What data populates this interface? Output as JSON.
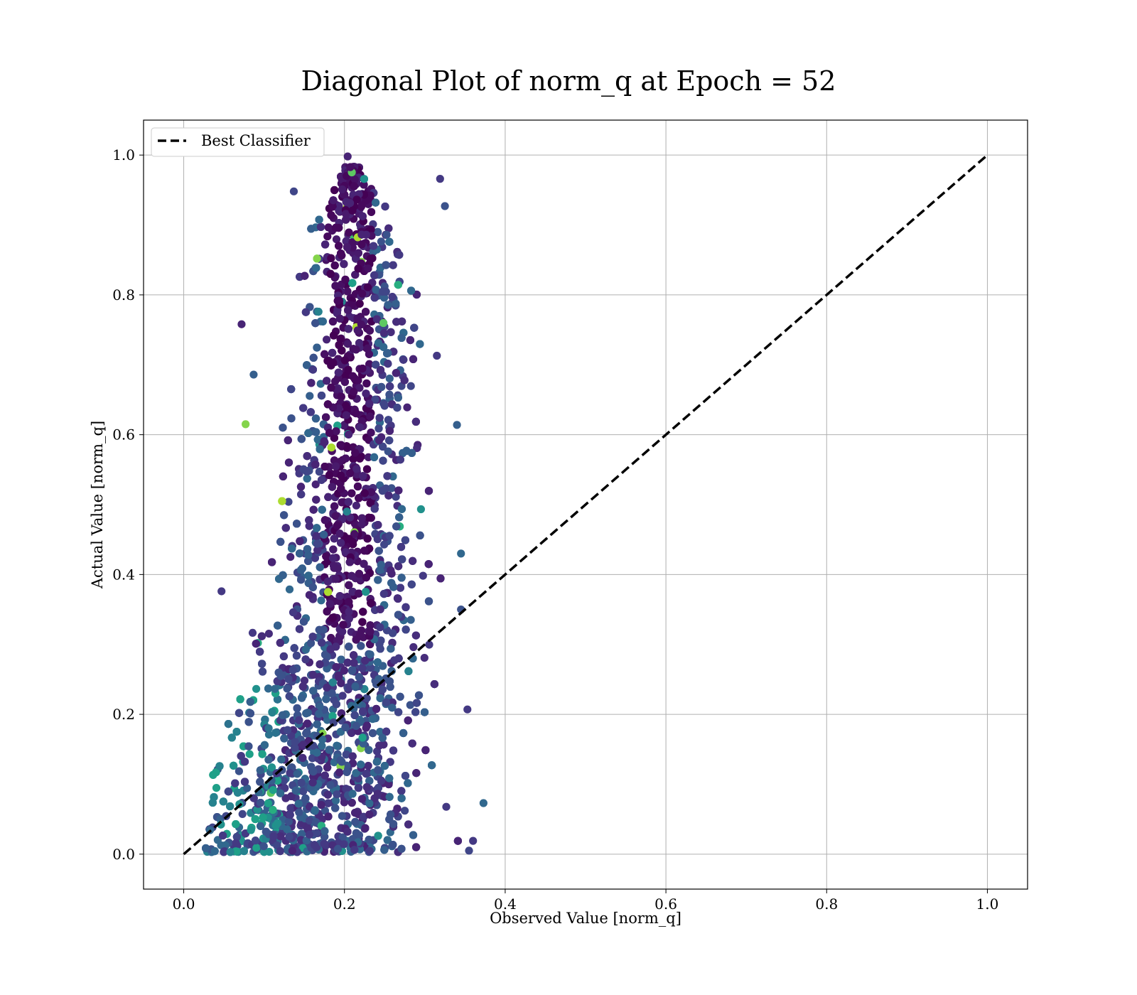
{
  "chart_data": {
    "type": "scatter",
    "title": "Diagonal Plot of norm_q at Epoch = 52",
    "xlabel": "Observed Value [norm_q]",
    "ylabel": "Actual Value [norm_q]",
    "xlim": [
      -0.05,
      1.05
    ],
    "ylim": [
      -0.05,
      1.05
    ],
    "xticks": [
      "0.0",
      "0.2",
      "0.4",
      "0.6",
      "0.8",
      "1.0"
    ],
    "yticks": [
      "0.0",
      "0.2",
      "0.4",
      "0.6",
      "0.8",
      "1.0"
    ],
    "grid": true,
    "legend_position": "top-left",
    "colormap": "viridis",
    "series": [
      {
        "name": "Best Classifier",
        "kind": "line",
        "style": "dashed",
        "color": "#000000",
        "x": [
          0.0,
          1.0
        ],
        "y": [
          0.0,
          1.0
        ]
      }
    ],
    "scatter_envelope": {
      "description_points_y": [
        0.0,
        0.1,
        0.2,
        0.3,
        0.4,
        0.5,
        0.6,
        0.7,
        0.8,
        0.9,
        1.0
      ],
      "x_min": [
        0.02,
        0.025,
        0.05,
        0.08,
        0.1,
        0.11,
        0.12,
        0.13,
        0.14,
        0.15,
        0.2
      ],
      "x_max": [
        0.36,
        0.34,
        0.33,
        0.32,
        0.32,
        0.31,
        0.31,
        0.3,
        0.3,
        0.29,
        0.22
      ],
      "x_center": [
        0.15,
        0.16,
        0.18,
        0.2,
        0.205,
        0.21,
        0.21,
        0.215,
        0.22,
        0.21,
        0.21
      ]
    },
    "outliers": [
      {
        "x": 0.047,
        "y": 0.376
      },
      {
        "x": 0.373,
        "y": 0.073
      },
      {
        "x": 0.355,
        "y": 0.005
      },
      {
        "x": 0.36,
        "y": 0.019
      },
      {
        "x": 0.345,
        "y": 0.43
      },
      {
        "x": 0.319,
        "y": 0.966
      },
      {
        "x": 0.204,
        "y": 0.998
      },
      {
        "x": 0.137,
        "y": 0.948
      },
      {
        "x": 0.072,
        "y": 0.758
      },
      {
        "x": 0.087,
        "y": 0.686
      },
      {
        "x": 0.077,
        "y": 0.615
      },
      {
        "x": 0.065,
        "y": 0.016
      },
      {
        "x": 0.325,
        "y": 0.927
      },
      {
        "x": 0.345,
        "y": 0.35
      },
      {
        "x": 0.34,
        "y": 0.614
      },
      {
        "x": 0.353,
        "y": 0.207
      },
      {
        "x": 0.315,
        "y": 0.713
      }
    ]
  }
}
